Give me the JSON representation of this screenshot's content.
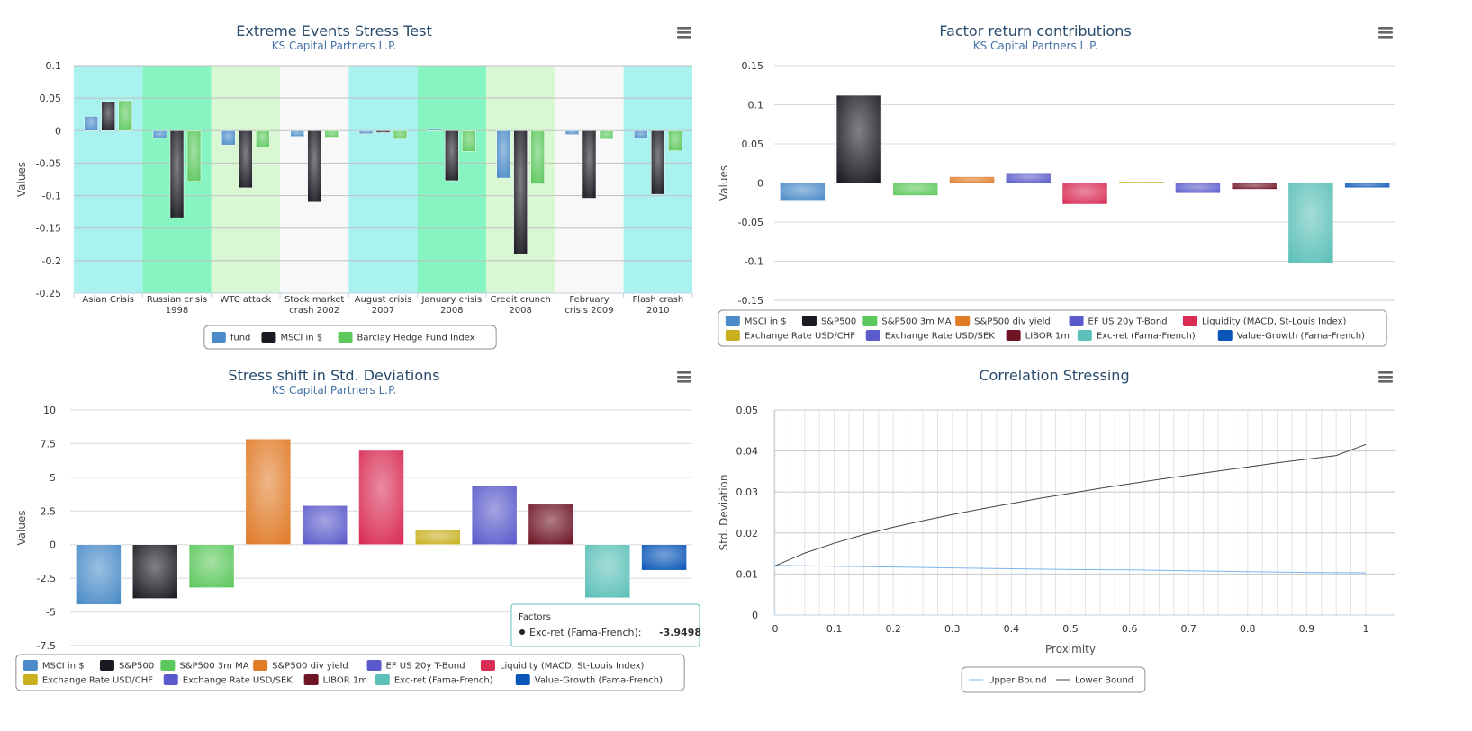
{
  "chart_data": [
    {
      "id": "stress",
      "type": "bar",
      "title": "Extreme Events Stress Test",
      "subtitle": "KS Capital Partners L.P.",
      "ylabel": "Values",
      "ylim": [
        -0.25,
        0.1
      ],
      "yticks": [
        "0.1",
        "0.05",
        "0",
        "-0.05",
        "-0.1",
        "-0.15",
        "-0.2",
        "-0.25"
      ],
      "ytick_values": [
        0.1,
        0.05,
        0,
        -0.05,
        -0.1,
        -0.15,
        -0.2,
        -0.25
      ],
      "categories": [
        [
          "Asian Crisis"
        ],
        [
          "Russian crisis",
          "1998"
        ],
        [
          "WTC attack"
        ],
        [
          "Stock market",
          "crash 2002"
        ],
        [
          "August crisis",
          "2007"
        ],
        [
          "January crisis",
          "2008"
        ],
        [
          "Credit crunch",
          "2008"
        ],
        [
          "February",
          "crisis 2009"
        ],
        [
          "Flash crash",
          "2010"
        ]
      ],
      "band_colors": [
        "#aaf2f0",
        "#86f5c2",
        "#d9f7d3",
        "#f8f8f8",
        "#aaf2f0",
        "#86f5c2",
        "#d9f7d3",
        "#f8f8f8",
        "#aaf2f0"
      ],
      "series": [
        {
          "name": "fund",
          "color": "#4a8bc8",
          "values": [
            0.022,
            -0.012,
            -0.022,
            -0.009,
            -0.005,
            0.003,
            -0.073,
            -0.006,
            -0.012
          ]
        },
        {
          "name": "MSCI in $",
          "color": "#1a1a22",
          "values": [
            0.045,
            -0.134,
            -0.088,
            -0.11,
            -0.003,
            -0.077,
            -0.19,
            -0.104,
            -0.098
          ]
        },
        {
          "name": "Barclay Hedge Fund Index",
          "color": "#5cc85c",
          "values": [
            0.046,
            -0.078,
            -0.025,
            -0.01,
            -0.013,
            -0.032,
            -0.082,
            -0.013,
            -0.031
          ]
        }
      ],
      "grid": true,
      "legend_position": "bottom-center"
    },
    {
      "id": "factor",
      "type": "bar",
      "title": "Factor return contributions",
      "subtitle": "KS Capital Partners L.P.",
      "ylabel": "Values",
      "ylim": [
        -0.15,
        0.15
      ],
      "yticks": [
        "0.15",
        "0.1",
        "0.05",
        "0",
        "-0.05",
        "-0.1",
        "-0.15"
      ],
      "ytick_values": [
        0.15,
        0.1,
        0.05,
        0,
        -0.05,
        -0.1,
        -0.15
      ],
      "series": [
        {
          "name": "MSCI in $",
          "color": "#4a8bc8",
          "value": -0.022
        },
        {
          "name": "S&P500",
          "color": "#1a1a22",
          "value": 0.112
        },
        {
          "name": "S&P500 3m MA",
          "color": "#5cc85c",
          "value": -0.016
        },
        {
          "name": "S&P500 div yield",
          "color": "#e07b28",
          "value": 0.008
        },
        {
          "name": "EF US 20y T-Bond",
          "color": "#5a5acb",
          "value": 0.013
        },
        {
          "name": "Liquidity (MACD, St-Louis Index)",
          "color": "#d92d55",
          "value": -0.027
        },
        {
          "name": "Exchange Rate USD/CHF",
          "color": "#c8b020",
          "value": 0.002
        },
        {
          "name": "Exchange Rate USD/SEK",
          "color": "#5a5acb",
          "value": -0.013
        },
        {
          "name": "LIBOR 1m",
          "color": "#6e1424",
          "value": -0.008
        },
        {
          "name": "Exc-ret (Fama-French)",
          "color": "#5cc0b8",
          "value": -0.103
        },
        {
          "name": "Value-Growth (Fama-French)",
          "color": "#0a56b8",
          "value": -0.006
        }
      ],
      "legend_rows": [
        [
          0,
          1,
          2,
          3,
          4,
          5
        ],
        [
          6,
          7,
          8,
          9,
          10
        ]
      ],
      "grid": true,
      "legend_position": "bottom-center"
    },
    {
      "id": "shift",
      "type": "bar",
      "title": "Stress shift in Std. Deviations",
      "subtitle": "KS Capital Partners L.P.",
      "ylabel": "Values",
      "ylim": [
        -7.5,
        10
      ],
      "yticks": [
        "10",
        "7.5",
        "5",
        "2.5",
        "0",
        "-2.5",
        "-5",
        "-7.5"
      ],
      "ytick_values": [
        10,
        7.5,
        5,
        2.5,
        0,
        -2.5,
        -5,
        -7.5
      ],
      "series": [
        {
          "name": "MSCI in $",
          "color": "#4a8bc8",
          "value": -4.45
        },
        {
          "name": "S&P500",
          "color": "#1a1a22",
          "value": -4.0
        },
        {
          "name": "S&P500 3m MA",
          "color": "#5cc85c",
          "value": -3.2
        },
        {
          "name": "S&P500 div yield",
          "color": "#e07b28",
          "value": 7.85
        },
        {
          "name": "EF US 20y T-Bond",
          "color": "#5a5acb",
          "value": 2.9
        },
        {
          "name": "Liquidity (MACD, St-Louis Index)",
          "color": "#d92d55",
          "value": 7.0
        },
        {
          "name": "Exchange Rate USD/CHF",
          "color": "#c8b020",
          "value": 1.1
        },
        {
          "name": "Exchange Rate USD/SEK",
          "color": "#5a5acb",
          "value": 4.35
        },
        {
          "name": "LIBOR 1m",
          "color": "#6e1424",
          "value": 3.0
        },
        {
          "name": "Exc-ret (Fama-French)",
          "color": "#5cc0b8",
          "value": -3.9498
        },
        {
          "name": "Value-Growth (Fama-French)",
          "color": "#0a56b8",
          "value": -1.9
        }
      ],
      "legend_rows": [
        [
          0,
          1,
          2,
          3,
          4,
          5
        ],
        [
          6,
          7,
          8,
          9,
          10
        ]
      ],
      "tooltip": {
        "title": "Factors",
        "label": "Exc-ret (Fama-French): ",
        "value": "-3.9498",
        "series_index": 9
      },
      "grid": true,
      "legend_position": "bottom-center"
    },
    {
      "id": "corr",
      "type": "line",
      "title": "Correlation Stressing",
      "subtitle": "",
      "xlabel": "Proximity",
      "ylabel": "Std. Deviation",
      "xlim": [
        0,
        1
      ],
      "ylim": [
        0,
        0.05
      ],
      "xticks": [
        "0",
        "0.1",
        "0.2",
        "0.3",
        "0.4",
        "0.5",
        "0.6",
        "0.7",
        "0.8",
        "0.9",
        "1"
      ],
      "xtick_values": [
        0,
        0.1,
        0.2,
        0.3,
        0.4,
        0.5,
        0.6,
        0.7,
        0.8,
        0.9,
        1
      ],
      "yticks": [
        "0.05",
        "0.04",
        "0.03",
        "0.02",
        "0.01",
        "0"
      ],
      "ytick_values": [
        0.05,
        0.04,
        0.03,
        0.02,
        0.01,
        0
      ],
      "series": [
        {
          "name": "Upper Bound",
          "color": "#7cb5ec",
          "x": [
            0,
            0.1,
            0.2,
            0.3,
            0.4,
            0.5,
            0.6,
            0.7,
            0.8,
            0.9,
            1
          ],
          "y": [
            0.0121,
            0.0119,
            0.0117,
            0.0115,
            0.0113,
            0.0111,
            0.011,
            0.0108,
            0.0106,
            0.0104,
            0.0103
          ]
        },
        {
          "name": "Lower Bound",
          "color": "#434348",
          "x": [
            0,
            0.05,
            0.1,
            0.15,
            0.2,
            0.25,
            0.3,
            0.35,
            0.4,
            0.45,
            0.5,
            0.55,
            0.6,
            0.65,
            0.7,
            0.75,
            0.8,
            0.85,
            0.9,
            0.95,
            1
          ],
          "y": [
            0.012,
            0.0151,
            0.0175,
            0.0196,
            0.0214,
            0.023,
            0.0245,
            0.0259,
            0.0272,
            0.0285,
            0.0297,
            0.0309,
            0.032,
            0.0331,
            0.0341,
            0.0351,
            0.0361,
            0.0371,
            0.038,
            0.0389,
            0.0416
          ]
        }
      ],
      "grid": true,
      "legend_position": "bottom-center"
    }
  ]
}
